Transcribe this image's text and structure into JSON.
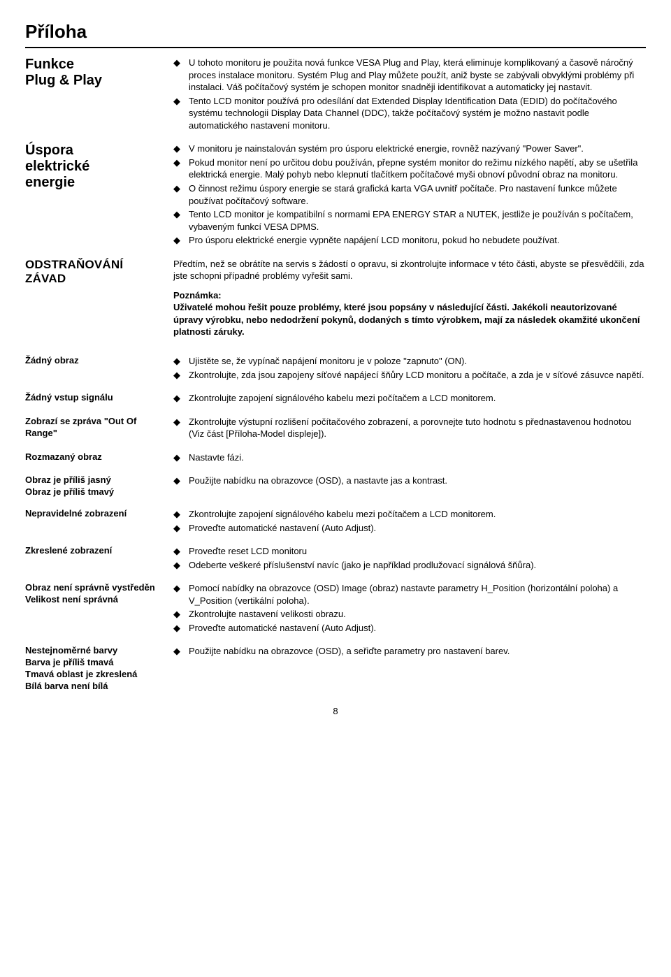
{
  "title": "Příloha",
  "sections": {
    "plugplay": {
      "heading": "Funkce\nPlug & Play",
      "bullets": [
        "U tohoto monitoru je použita nová funkce VESA Plug and Play, která eliminuje komplikovaný a časově náročný proces instalace monitoru. Systém Plug and Play můžete použít, aniž byste se zabývali obvyklými problémy při instalaci. Váš počítačový systém je schopen monitor snadněji identifikovat a automaticky jej nastavit.",
        "Tento LCD monitor používá pro odesílání dat Extended Display Identification Data (EDID) do počítačového systému technologii Display Data Channel (DDC), takže počítačový systém je možno nastavit podle automatického nastavení monitoru."
      ]
    },
    "energy": {
      "heading": "Úspora\nelektrické\nenergie",
      "bullets": [
        "V monitoru je nainstalován systém pro úsporu elektrické energie, rovněž nazývaný \"Power Saver\".",
        "Pokud monitor není po určitou dobu používán, přepne systém monitor do režimu nízkého napětí, aby se ušetřila elektrická energie. Malý pohyb nebo klepnutí tlačítkem počítačové myši obnoví původní obraz na monitoru.",
        "O činnost režimu úspory energie se stará grafická karta VGA uvnitř počítače. Pro nastavení funkce můžete používat počítačový software.",
        "Tento LCD monitor je kompatibilní s normami EPA ENERGY STAR a NUTEK, jestliže je používán s počítačem, vybaveným funkcí VESA DPMS.",
        "Pro úsporu elektrické energie vypněte napájení LCD monitoru, pokud ho nebudete používat."
      ]
    },
    "troubleshoot": {
      "heading": "ODSTRAŇOVÁNÍ ZÁVAD",
      "intro": "Předtím, než se obrátíte na servis s žádostí o opravu, si zkontrolujte informace v této části, abyste se přesvědčili, zda jste schopni případné problémy vyřešit sami.",
      "note_label": "Poznámka:",
      "note_body": "Uživatelé mohou řešit pouze problémy, které jsou popsány v následující části. Jakékoli neautorizované úpravy výrobku, nebo nedodržení pokynů, dodaných s tímto výrobkem, mají za následek okamžité ukončení platnosti záruky."
    },
    "items": [
      {
        "heading": "Žádný obraz",
        "bullets": [
          "Ujistěte se, že vypínač napájení monitoru je v poloze \"zapnuto\" (ON).",
          "Zkontrolujte, zda jsou zapojeny síťové napájecí šňůry LCD monitoru a počítače, a zda je v síťové zásuvce napětí."
        ]
      },
      {
        "heading": "Žádný vstup signálu",
        "bullets": [
          "Zkontrolujte zapojení signálového kabelu mezi počítačem a LCD monitorem."
        ]
      },
      {
        "heading": "Zobrazí se zpráva \"Out Of Range\"",
        "bullets": [
          "Zkontrolujte výstupní rozlišení počítačového zobrazení, a porovnejte tuto hodnotu s přednastavenou hodnotou (Viz část [Příloha-Model displeje])."
        ]
      },
      {
        "heading": "Rozmazaný obraz",
        "bullets": [
          "Nastavte fázi."
        ]
      },
      {
        "heading": "Obraz je příliš jasný\nObraz je příliš tmavý",
        "bullets": [
          "Použijte nabídku na obrazovce (OSD), a nastavte jas a kontrast."
        ]
      },
      {
        "heading": "Nepravidelné zobrazení",
        "bullets": [
          "Zkontrolujte zapojení signálového kabelu mezi počítačem a LCD monitorem.",
          "Proveďte automatické nastavení (Auto Adjust)."
        ]
      },
      {
        "heading": "Zkreslené zobrazení",
        "bullets": [
          "Proveďte reset LCD monitoru",
          "Odeberte veškeré příslušenství navíc (jako je například prodlužovací signálová šňůra)."
        ]
      },
      {
        "heading": "Obraz není správně vystředěn\nVelikost není správná",
        "bullets": [
          "Pomocí nabídky na obrazovce (OSD) Image (obraz) nastavte parametry H_Position (horizontální poloha) a V_Position (vertikální poloha).",
          "Zkontrolujte nastavení velikosti obrazu.",
          "Proveďte automatické nastavení (Auto Adjust)."
        ]
      },
      {
        "heading": "Nestejnoměrné barvy\nBarva je příliš tmavá\nTmavá oblast je zkreslená\nBílá barva není bílá",
        "bullets": [
          "Použijte nabídku na obrazovce (OSD), a seřiďte parametry pro nastavení barev."
        ]
      }
    ]
  },
  "page_number": "8"
}
